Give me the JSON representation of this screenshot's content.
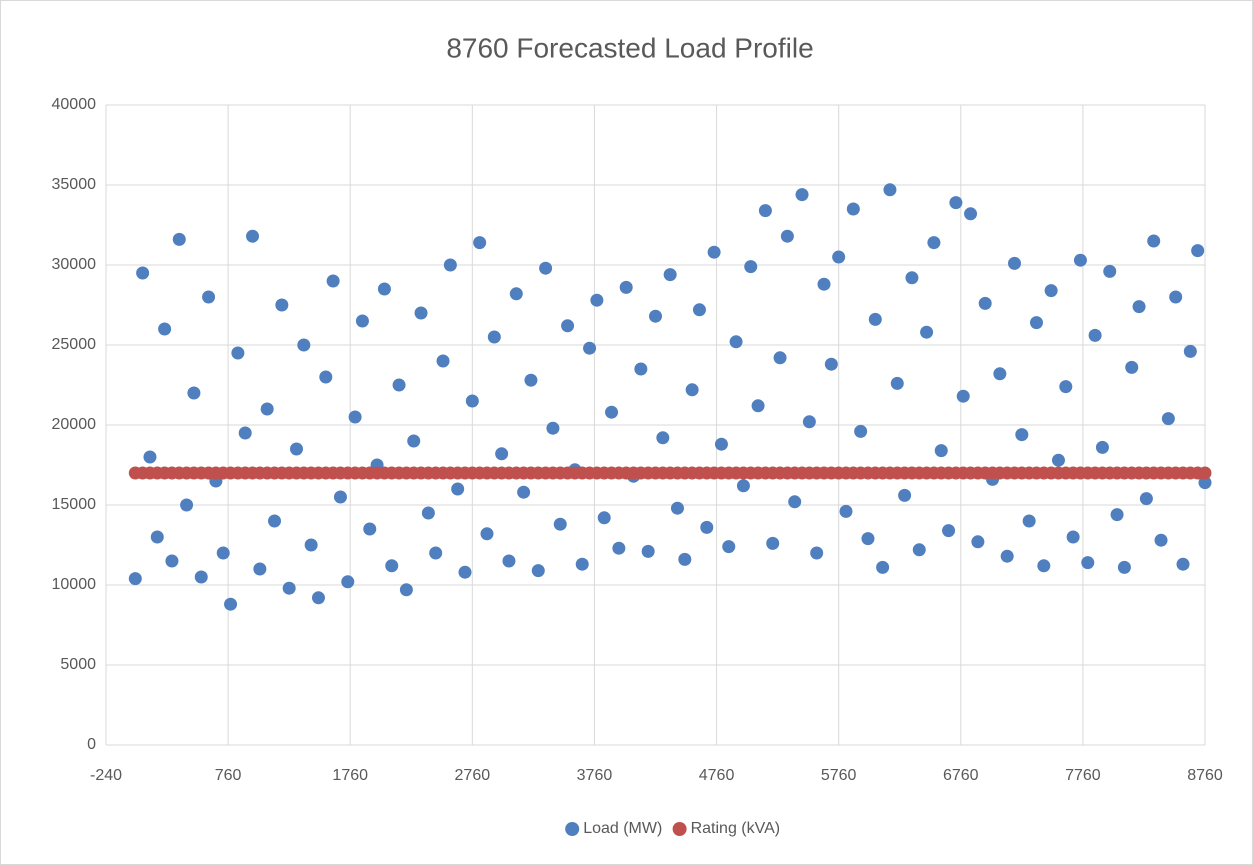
{
  "chart_data": {
    "type": "scatter",
    "title": "8760 Forecasted Load Profile",
    "x": [
      0,
      60,
      120,
      180,
      240,
      300,
      360,
      420,
      480,
      540,
      600,
      660,
      720,
      780,
      840,
      900,
      960,
      1020,
      1080,
      1140,
      1200,
      1260,
      1320,
      1380,
      1440,
      1500,
      1560,
      1620,
      1680,
      1740,
      1800,
      1860,
      1920,
      1980,
      2040,
      2100,
      2160,
      2220,
      2280,
      2340,
      2400,
      2460,
      2520,
      2580,
      2640,
      2700,
      2760,
      2820,
      2880,
      2940,
      3000,
      3060,
      3120,
      3180,
      3240,
      3300,
      3360,
      3420,
      3480,
      3540,
      3600,
      3660,
      3720,
      3780,
      3840,
      3900,
      3960,
      4020,
      4080,
      4140,
      4200,
      4260,
      4320,
      4380,
      4440,
      4500,
      4560,
      4620,
      4680,
      4740,
      4800,
      4860,
      4920,
      4980,
      5040,
      5100,
      5160,
      5220,
      5280,
      5340,
      5400,
      5460,
      5520,
      5580,
      5640,
      5700,
      5760,
      5820,
      5880,
      5940,
      6000,
      6060,
      6120,
      6180,
      6240,
      6300,
      6360,
      6420,
      6480,
      6540,
      6600,
      6660,
      6720,
      6780,
      6840,
      6900,
      6960,
      7020,
      7080,
      7140,
      7200,
      7260,
      7320,
      7380,
      7440,
      7500,
      7560,
      7620,
      7680,
      7740,
      7800,
      7860,
      7920,
      7980,
      8040,
      8100,
      8160,
      8220,
      8280,
      8340,
      8400,
      8460,
      8520,
      8580,
      8640,
      8700,
      8760
    ],
    "series": [
      {
        "name": "Load (MW)",
        "color": "#4f7fbe",
        "values": [
          10400,
          29500,
          18000,
          13000,
          26000,
          11500,
          31600,
          15000,
          22000,
          10500,
          28000,
          16500,
          12000,
          8800,
          24500,
          19500,
          31800,
          11000,
          21000,
          14000,
          27500,
          9800,
          18500,
          25000,
          12500,
          9200,
          23000,
          29000,
          15500,
          10200,
          20500,
          26500,
          13500,
          17500,
          28500,
          11200,
          22500,
          9700,
          19000,
          27000,
          14500,
          12000,
          24000,
          30000,
          16000,
          10800,
          21500,
          31400,
          13200,
          25500,
          18200,
          11500,
          28200,
          15800,
          22800,
          10900,
          29800,
          19800,
          13800,
          26200,
          17200,
          11300,
          24800,
          27800,
          14200,
          20800,
          12300,
          28600,
          16800,
          23500,
          12100,
          26800,
          19200,
          29400,
          14800,
          11600,
          22200,
          27200,
          13600,
          30800,
          18800,
          12400,
          25200,
          16200,
          29900,
          21200,
          33400,
          12600,
          24200,
          31800,
          15200,
          34400,
          20200,
          12000,
          28800,
          23800,
          30500,
          14600,
          33500,
          19600,
          12900,
          26600,
          11100,
          34700,
          22600,
          15600,
          29200,
          12200,
          25800,
          31400,
          18400,
          13400,
          33900,
          21800,
          33200,
          12700,
          27600,
          16600,
          23200,
          11800,
          30100,
          19400,
          14000,
          26400,
          11200,
          28400,
          17800,
          22400,
          13000,
          30300,
          11400,
          25600,
          18600,
          29600,
          14400,
          11100,
          23600,
          27400,
          15400,
          31500,
          12800,
          20400,
          28000,
          11300,
          24600,
          30900,
          16400
        ]
      },
      {
        "name": "Rating (kVA)",
        "color": "#c0504d",
        "values": [
          17000,
          17000,
          17000,
          17000,
          17000,
          17000,
          17000,
          17000,
          17000,
          17000,
          17000,
          17000,
          17000,
          17000,
          17000,
          17000,
          17000,
          17000,
          17000,
          17000,
          17000,
          17000,
          17000,
          17000,
          17000,
          17000,
          17000,
          17000,
          17000,
          17000,
          17000,
          17000,
          17000,
          17000,
          17000,
          17000,
          17000,
          17000,
          17000,
          17000,
          17000,
          17000,
          17000,
          17000,
          17000,
          17000,
          17000,
          17000,
          17000,
          17000,
          17000,
          17000,
          17000,
          17000,
          17000,
          17000,
          17000,
          17000,
          17000,
          17000,
          17000,
          17000,
          17000,
          17000,
          17000,
          17000,
          17000,
          17000,
          17000,
          17000,
          17000,
          17000,
          17000,
          17000,
          17000,
          17000,
          17000,
          17000,
          17000,
          17000,
          17000,
          17000,
          17000,
          17000,
          17000,
          17000,
          17000,
          17000,
          17000,
          17000,
          17000,
          17000,
          17000,
          17000,
          17000,
          17000,
          17000,
          17000,
          17000,
          17000,
          17000,
          17000,
          17000,
          17000,
          17000,
          17000,
          17000,
          17000,
          17000,
          17000,
          17000,
          17000,
          17000,
          17000,
          17000,
          17000,
          17000,
          17000,
          17000,
          17000,
          17000,
          17000,
          17000,
          17000,
          17000,
          17000,
          17000,
          17000,
          17000,
          17000,
          17000,
          17000,
          17000,
          17000,
          17000,
          17000,
          17000,
          17000,
          17000,
          17000,
          17000,
          17000,
          17000,
          17000,
          17000,
          17000,
          17000
        ]
      }
    ],
    "xlim": [
      -240,
      8760
    ],
    "xticks": [
      -240,
      760,
      1760,
      2760,
      3760,
      4760,
      5760,
      6760,
      7760,
      8760
    ],
    "ylim": [
      0,
      40000
    ],
    "yticks": [
      0,
      5000,
      10000,
      15000,
      20000,
      25000,
      30000,
      35000,
      40000
    ],
    "grid": true,
    "legend": "bottom"
  }
}
